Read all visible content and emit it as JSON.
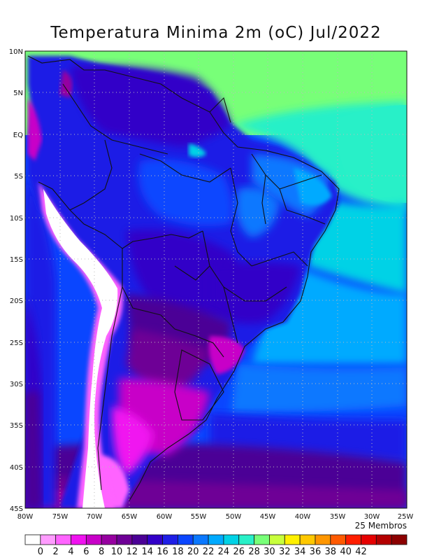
{
  "title": "Temperatura Minima 2m (oC) Jul/2022",
  "ensemble_note": "25 Membros",
  "lat_labels": [
    "10N",
    "5N",
    "EQ",
    "5S",
    "10S",
    "15S",
    "20S",
    "25S",
    "30S",
    "35S",
    "40S",
    "45S"
  ],
  "lon_labels": [
    "80W",
    "75W",
    "70W",
    "65W",
    "60W",
    "55W",
    "50W",
    "45W",
    "40W",
    "35W",
    "30W",
    "25W"
  ],
  "colorbar": {
    "labels": [
      "0",
      "2",
      "4",
      "6",
      "8",
      "10",
      "12",
      "14",
      "16",
      "18",
      "20",
      "22",
      "24",
      "26",
      "28",
      "30",
      "32",
      "34",
      "36",
      "38",
      "40",
      "42"
    ],
    "colors": [
      "#ffffff",
      "#ff9cff",
      "#ff64ff",
      "#f012f0",
      "#c800c8",
      "#9600a0",
      "#6e0096",
      "#4b0096",
      "#3200c8",
      "#1e1ee6",
      "#0a46ff",
      "#0a78ff",
      "#00aaff",
      "#00d2e6",
      "#28f0c8",
      "#78ff78",
      "#c8ff3c",
      "#fff000",
      "#ffc800",
      "#ff9600",
      "#ff5a00",
      "#ff1e00",
      "#e60000",
      "#b40000",
      "#8c0000"
    ]
  },
  "map": {
    "region": "South America",
    "lon_range": [
      -80,
      -25
    ],
    "lat_range": [
      -45,
      10
    ],
    "variable": "Temperatura Minima 2m",
    "units": "oC"
  }
}
